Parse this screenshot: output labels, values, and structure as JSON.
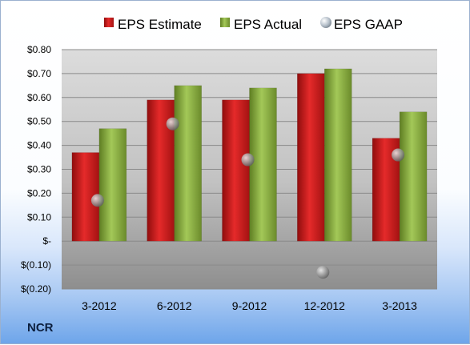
{
  "company": "NCR",
  "chart_data": {
    "type": "bar",
    "title": "",
    "xlabel": "",
    "ylabel": "",
    "categories": [
      "3-2012",
      "6-2012",
      "9-2012",
      "12-2012",
      "3-2013"
    ],
    "series": [
      {
        "name": "EPS Estimate",
        "kind": "bar",
        "color": "#cc1f1f",
        "values": [
          0.37,
          0.59,
          0.59,
          0.7,
          0.43
        ]
      },
      {
        "name": "EPS Actual",
        "kind": "bar",
        "color": "#8cb03d",
        "values": [
          0.47,
          0.65,
          0.64,
          0.72,
          0.54
        ]
      },
      {
        "name": "EPS GAAP",
        "kind": "marker",
        "color": "#9a9a9a",
        "values": [
          0.17,
          0.49,
          0.34,
          -0.13,
          0.36
        ]
      }
    ],
    "ylim": [
      -0.2,
      0.8
    ],
    "yticks": [
      {
        "value": 0.8,
        "label": "$0.80"
      },
      {
        "value": 0.7,
        "label": "$0.70"
      },
      {
        "value": 0.6,
        "label": "$0.60"
      },
      {
        "value": 0.5,
        "label": "$0.50"
      },
      {
        "value": 0.4,
        "label": "$0.40"
      },
      {
        "value": 0.3,
        "label": "$0.30"
      },
      {
        "value": 0.2,
        "label": "$0.20"
      },
      {
        "value": 0.1,
        "label": "$0.10"
      },
      {
        "value": 0.0,
        "label": "$-"
      },
      {
        "value": -0.1,
        "label": "$(0.10)"
      },
      {
        "value": -0.2,
        "label": "$(0.20)"
      }
    ],
    "grid": true,
    "legend_position": "top"
  }
}
